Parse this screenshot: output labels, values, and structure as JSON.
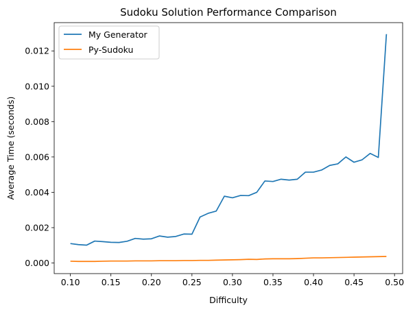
{
  "chart_data": {
    "type": "line",
    "title": "Sudoku Solution Performance Comparison",
    "xlabel": "Difficulty",
    "ylabel": "Average Time (seconds)",
    "xlim": [
      0.08,
      0.51
    ],
    "ylim": [
      -0.0006,
      0.0136
    ],
    "xticks": [
      0.1,
      0.15,
      0.2,
      0.25,
      0.3,
      0.35,
      0.4,
      0.45,
      0.5
    ],
    "xtick_labels": [
      "0.10",
      "0.15",
      "0.20",
      "0.25",
      "0.30",
      "0.35",
      "0.40",
      "0.45",
      "0.50"
    ],
    "yticks": [
      0.0,
      0.002,
      0.004,
      0.006,
      0.008,
      0.01,
      0.012
    ],
    "ytick_labels": [
      "0.000",
      "0.002",
      "0.004",
      "0.006",
      "0.008",
      "0.010",
      "0.012"
    ],
    "grid": false,
    "legend": "top-left",
    "x": [
      0.1,
      0.11,
      0.12,
      0.13,
      0.14,
      0.15,
      0.16,
      0.17,
      0.18,
      0.19,
      0.2,
      0.21,
      0.22,
      0.23,
      0.24,
      0.25,
      0.26,
      0.27,
      0.28,
      0.29,
      0.3,
      0.31,
      0.32,
      0.33,
      0.34,
      0.35,
      0.36,
      0.37,
      0.38,
      0.39,
      0.4,
      0.41,
      0.42,
      0.43,
      0.44,
      0.45,
      0.46,
      0.47,
      0.48,
      0.49
    ],
    "series": [
      {
        "name": "My Generator",
        "color": "#1f77b4",
        "values": [
          0.0011,
          0.00104,
          0.00101,
          0.00124,
          0.00121,
          0.00117,
          0.00116,
          0.00123,
          0.00139,
          0.00135,
          0.00137,
          0.00153,
          0.00146,
          0.0015,
          0.00164,
          0.00163,
          0.0026,
          0.00281,
          0.00294,
          0.00378,
          0.00369,
          0.00382,
          0.00381,
          0.004,
          0.00464,
          0.00461,
          0.00474,
          0.00469,
          0.00474,
          0.00514,
          0.00514,
          0.00526,
          0.00552,
          0.00561,
          0.006,
          0.0057,
          0.00584,
          0.0062,
          0.00597,
          0.01295
        ]
      },
      {
        "name": "Py-Sudoku",
        "color": "#ff7f0e",
        "values": [
          0.0001,
          9e-05,
          9e-05,
          9e-05,
          0.0001,
          0.00011,
          0.00011,
          0.00011,
          0.00012,
          0.00012,
          0.00012,
          0.00013,
          0.00013,
          0.00013,
          0.00014,
          0.00014,
          0.00015,
          0.00015,
          0.00016,
          0.00017,
          0.00018,
          0.00019,
          0.00021,
          0.0002,
          0.00023,
          0.00024,
          0.00024,
          0.00024,
          0.00025,
          0.00027,
          0.00029,
          0.00029,
          0.0003,
          0.00031,
          0.00032,
          0.00033,
          0.00034,
          0.00035,
          0.00036,
          0.00037
        ]
      }
    ]
  }
}
